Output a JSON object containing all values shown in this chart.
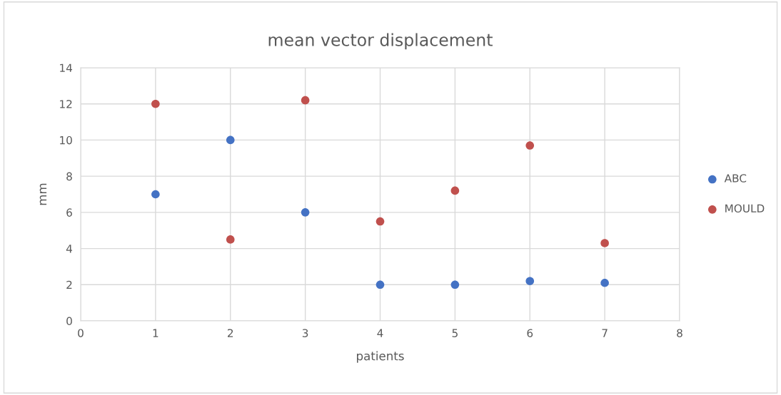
{
  "chart_data": {
    "type": "scatter",
    "title": "mean vector displacement",
    "xlabel": "patients",
    "ylabel": "mm",
    "x": [
      1,
      2,
      3,
      4,
      5,
      6,
      7
    ],
    "series": [
      {
        "name": "ABC",
        "color": "#4472c4",
        "values": [
          7.0,
          10.0,
          6.0,
          2.0,
          2.0,
          2.2,
          2.1
        ]
      },
      {
        "name": "MOULD",
        "color": "#c0504d",
        "values": [
          12.0,
          4.5,
          12.2,
          5.5,
          7.2,
          9.7,
          4.3
        ]
      }
    ],
    "xlim": [
      0,
      8
    ],
    "xticks": [
      0,
      1,
      2,
      3,
      4,
      5,
      6,
      7,
      8
    ],
    "ylim": [
      0,
      14
    ],
    "yticks": [
      0,
      2,
      4,
      6,
      8,
      10,
      12,
      14
    ],
    "grid": true,
    "legend": "right",
    "marker": "circle"
  }
}
